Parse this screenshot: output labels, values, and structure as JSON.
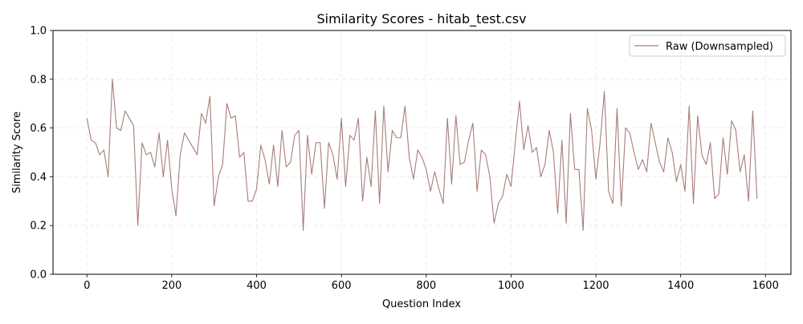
{
  "chart_data": {
    "type": "line",
    "title": "Similarity Scores - hitab_test.csv",
    "xlabel": "Question Index",
    "ylabel": "Similarity Score",
    "xlim": [
      -80,
      1660
    ],
    "ylim": [
      0.0,
      1.0
    ],
    "xticks": [
      0,
      200,
      400,
      600,
      800,
      1000,
      1200,
      1400,
      1600
    ],
    "xtick_labels": [
      "0",
      "200",
      "400",
      "600",
      "800",
      "1000",
      "1200",
      "1400",
      "1600"
    ],
    "yticks": [
      0.0,
      0.2,
      0.4,
      0.6,
      0.8,
      1.0
    ],
    "ytick_labels": [
      "0.0",
      "0.2",
      "0.4",
      "0.6",
      "0.8",
      "1.0"
    ],
    "grid": true,
    "legend_position": "top-right",
    "series": [
      {
        "name": "Raw (Downsampled)",
        "color": "#a87d78",
        "x": [
          0,
          10,
          20,
          30,
          40,
          50,
          60,
          70,
          80,
          90,
          100,
          110,
          120,
          130,
          140,
          150,
          160,
          170,
          180,
          190,
          200,
          210,
          220,
          230,
          240,
          250,
          260,
          270,
          280,
          290,
          300,
          310,
          320,
          330,
          340,
          350,
          360,
          370,
          380,
          390,
          400,
          410,
          420,
          430,
          440,
          450,
          460,
          470,
          480,
          490,
          500,
          510,
          520,
          530,
          540,
          550,
          560,
          570,
          580,
          590,
          600,
          610,
          620,
          630,
          640,
          650,
          660,
          670,
          680,
          690,
          700,
          710,
          720,
          730,
          740,
          750,
          760,
          770,
          780,
          790,
          800,
          810,
          820,
          830,
          840,
          850,
          860,
          870,
          880,
          890,
          900,
          910,
          920,
          930,
          940,
          950,
          960,
          970,
          980,
          990,
          1000,
          1010,
          1020,
          1030,
          1040,
          1050,
          1060,
          1070,
          1080,
          1090,
          1100,
          1110,
          1120,
          1130,
          1140,
          1150,
          1160,
          1170,
          1180,
          1190,
          1200,
          1210,
          1220,
          1230,
          1240,
          1250,
          1260,
          1270,
          1280,
          1290,
          1300,
          1310,
          1320,
          1330,
          1340,
          1350,
          1360,
          1370,
          1380,
          1390,
          1400,
          1410,
          1420,
          1430,
          1440,
          1450,
          1460,
          1470,
          1480,
          1490,
          1500,
          1510,
          1520,
          1530,
          1540,
          1550,
          1560,
          1570,
          1580
        ],
        "values": [
          0.64,
          0.55,
          0.54,
          0.49,
          0.51,
          0.4,
          0.8,
          0.6,
          0.59,
          0.67,
          0.64,
          0.61,
          0.2,
          0.54,
          0.49,
          0.5,
          0.44,
          0.58,
          0.4,
          0.55,
          0.35,
          0.24,
          0.49,
          0.58,
          0.55,
          0.52,
          0.49,
          0.66,
          0.62,
          0.73,
          0.28,
          0.4,
          0.45,
          0.7,
          0.64,
          0.65,
          0.48,
          0.5,
          0.3,
          0.3,
          0.35,
          0.53,
          0.47,
          0.37,
          0.53,
          0.36,
          0.59,
          0.44,
          0.46,
          0.57,
          0.59,
          0.18,
          0.57,
          0.41,
          0.54,
          0.54,
          0.27,
          0.54,
          0.49,
          0.39,
          0.64,
          0.36,
          0.57,
          0.55,
          0.64,
          0.3,
          0.48,
          0.36,
          0.67,
          0.29,
          0.69,
          0.42,
          0.59,
          0.56,
          0.56,
          0.69,
          0.48,
          0.39,
          0.51,
          0.48,
          0.43,
          0.34,
          0.42,
          0.35,
          0.29,
          0.64,
          0.37,
          0.65,
          0.45,
          0.46,
          0.55,
          0.62,
          0.34,
          0.51,
          0.49,
          0.4,
          0.21,
          0.29,
          0.32,
          0.41,
          0.36,
          0.54,
          0.71,
          0.51,
          0.61,
          0.5,
          0.52,
          0.4,
          0.45,
          0.59,
          0.5,
          0.25,
          0.55,
          0.21,
          0.66,
          0.43,
          0.43,
          0.18,
          0.68,
          0.59,
          0.39,
          0.54,
          0.75,
          0.34,
          0.29,
          0.68,
          0.28,
          0.6,
          0.58,
          0.5,
          0.43,
          0.47,
          0.42,
          0.62,
          0.54,
          0.46,
          0.42,
          0.56,
          0.5,
          0.38,
          0.45,
          0.34,
          0.69,
          0.29,
          0.65,
          0.49,
          0.45,
          0.54,
          0.31,
          0.33,
          0.56,
          0.41,
          0.63,
          0.59,
          0.42,
          0.49,
          0.3,
          0.67,
          0.31
        ]
      }
    ]
  }
}
